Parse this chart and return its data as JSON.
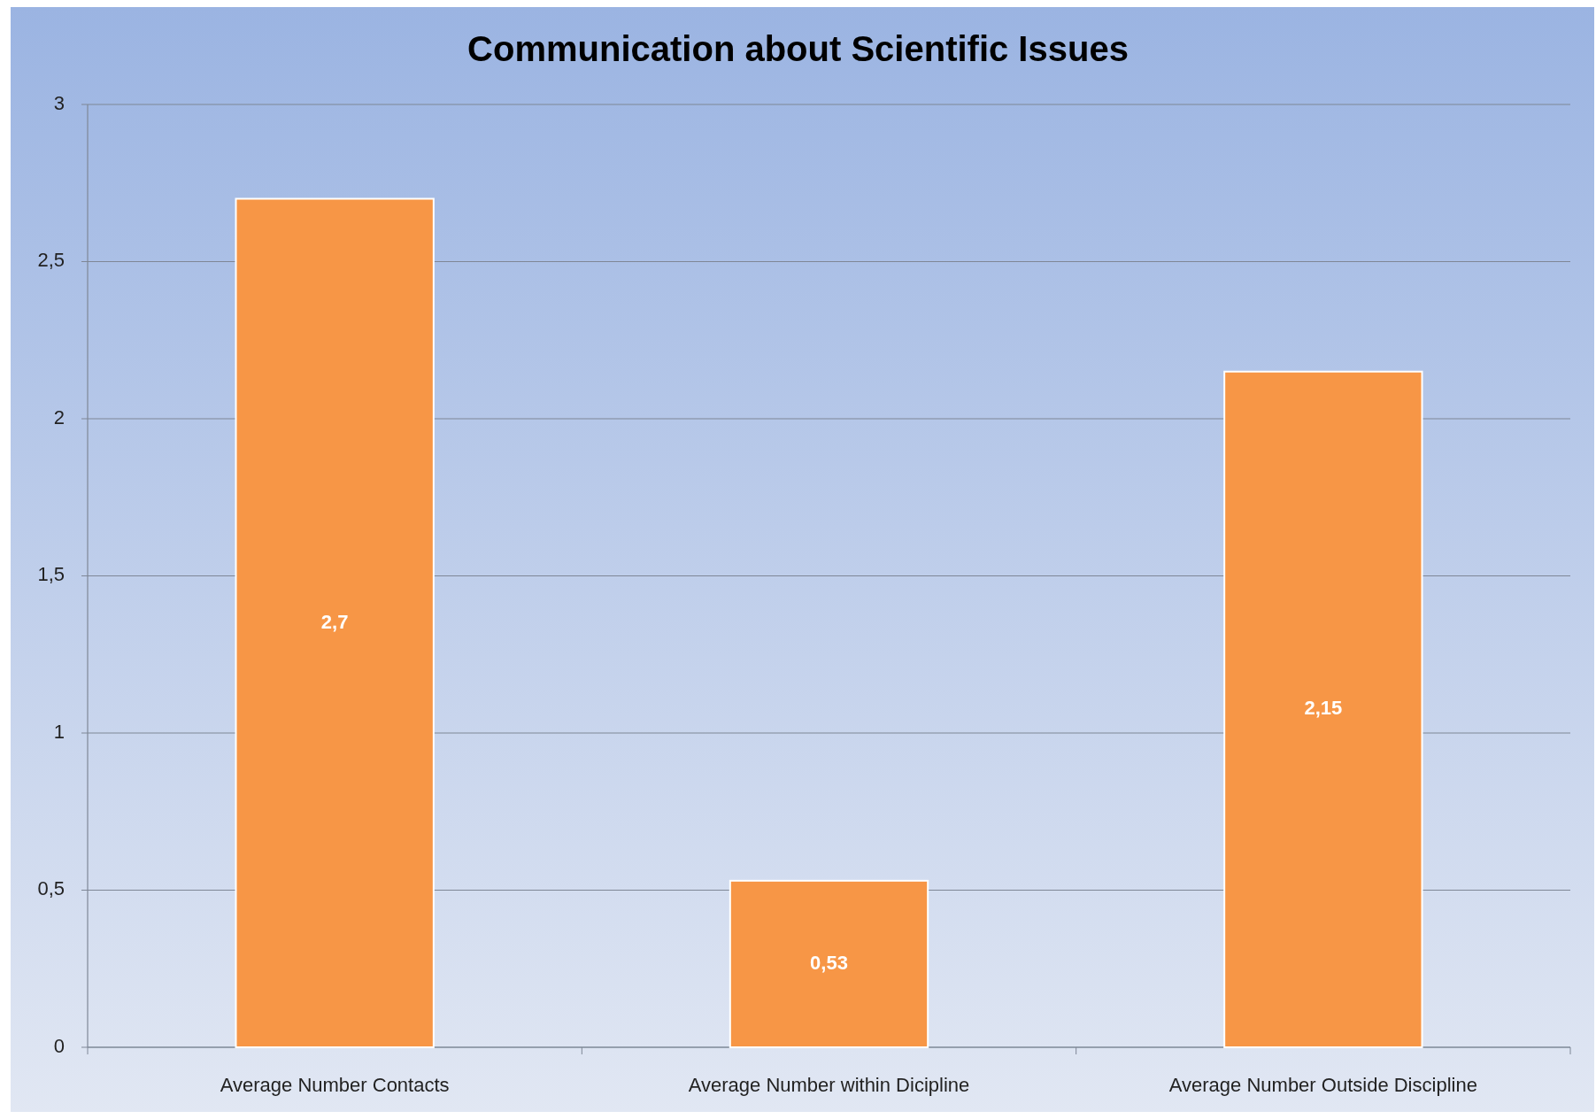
{
  "chart_data": {
    "type": "bar",
    "title": "Communication about Scientific Issues",
    "categories": [
      "Average Number Contacts",
      "Average Number within Dicipline",
      "Average Number Outside Discipline"
    ],
    "values": [
      2.7,
      0.53,
      2.15
    ],
    "color": "#f79646",
    "value_labels": [
      "2,7",
      "0,53",
      "2,15"
    ],
    "ylim": [
      0,
      3
    ],
    "yticks": [
      0,
      {
        "value": 0.5,
        "label": "0,5"
      },
      1,
      {
        "value": 1.5,
        "label": "1,5"
      },
      2,
      {
        "value": 2.5,
        "label": "2,5"
      },
      3
    ],
    "grid": "y"
  }
}
